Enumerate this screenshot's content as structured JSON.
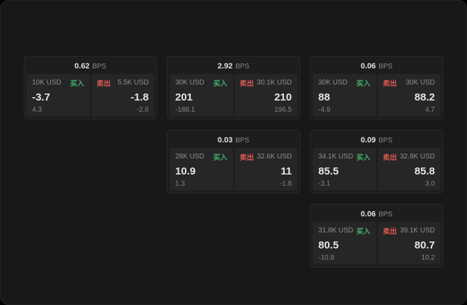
{
  "theme": {
    "page_bg": "#181818",
    "card_bg": "#1d1d1d",
    "panel_bg": "#262626",
    "buy_color": "#44b06e",
    "sell_color": "#dd5a52",
    "text_primary": "#e6e6e6",
    "text_secondary": "#8a8a8a"
  },
  "labels": {
    "bps_unit": "BPS",
    "buy": "买入",
    "sell": "卖出"
  },
  "cards": [
    {
      "bps": "0.62",
      "buy": {
        "size": "10K USD",
        "price": "-3.7",
        "delta": "4.3"
      },
      "sell": {
        "size": "5.5K USD",
        "price": "-1.8",
        "delta": "-2.6"
      }
    },
    {
      "bps": "2.92",
      "buy": {
        "size": "30K USD",
        "price": "201",
        "delta": "-188.1"
      },
      "sell": {
        "size": "30.1K USD",
        "price": "210",
        "delta": "196.5"
      }
    },
    {
      "bps": "0.06",
      "buy": {
        "size": "30K USD",
        "price": "88",
        "delta": "-4.9"
      },
      "sell": {
        "size": "30K USD",
        "price": "88.2",
        "delta": "4.7"
      }
    },
    {
      "bps": "0.03",
      "buy": {
        "size": "28K USD",
        "price": "10.9",
        "delta": "1.3"
      },
      "sell": {
        "size": "32.6K USD",
        "price": "11",
        "delta": "-1.8"
      }
    },
    {
      "bps": "0.09",
      "buy": {
        "size": "34.1K USD",
        "price": "85.5",
        "delta": "-3.1"
      },
      "sell": {
        "size": "32.8K USD",
        "price": "85.8",
        "delta": "3.0"
      }
    },
    {
      "bps": "0.06",
      "buy": {
        "size": "31.8K USD",
        "price": "80.5",
        "delta": "-10.8"
      },
      "sell": {
        "size": "39.1K USD",
        "price": "80.7",
        "delta": "10.2"
      }
    }
  ]
}
